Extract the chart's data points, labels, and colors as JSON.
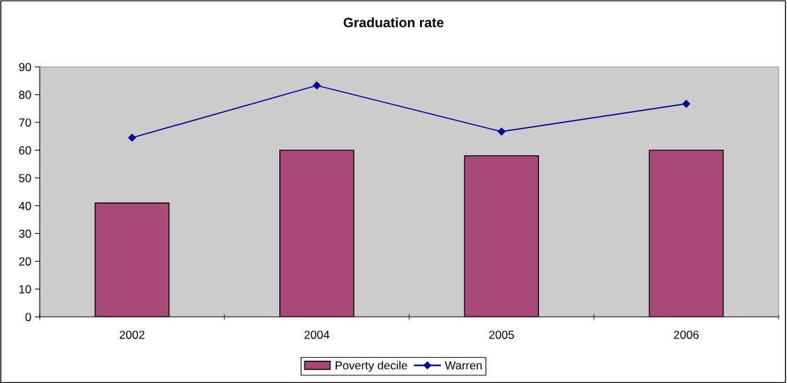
{
  "chart_data": {
    "type": "bar",
    "title": "Graduation rate",
    "categories": [
      "2002",
      "2004",
      "2005",
      "2006"
    ],
    "series": [
      {
        "name": "Poverty decile",
        "color": "#a8497a",
        "values": [
          41,
          60,
          58,
          60
        ]
      },
      {
        "name": "Warren",
        "type": "line",
        "color": "#000099",
        "marker": "diamond",
        "values": [
          64.5,
          83.3,
          66.7,
          76.7
        ]
      }
    ],
    "ylim": [
      0,
      90
    ],
    "yticks": [
      0,
      10,
      20,
      30,
      40,
      50,
      60,
      70,
      80,
      90
    ],
    "grid": false,
    "legend": "bottom"
  }
}
